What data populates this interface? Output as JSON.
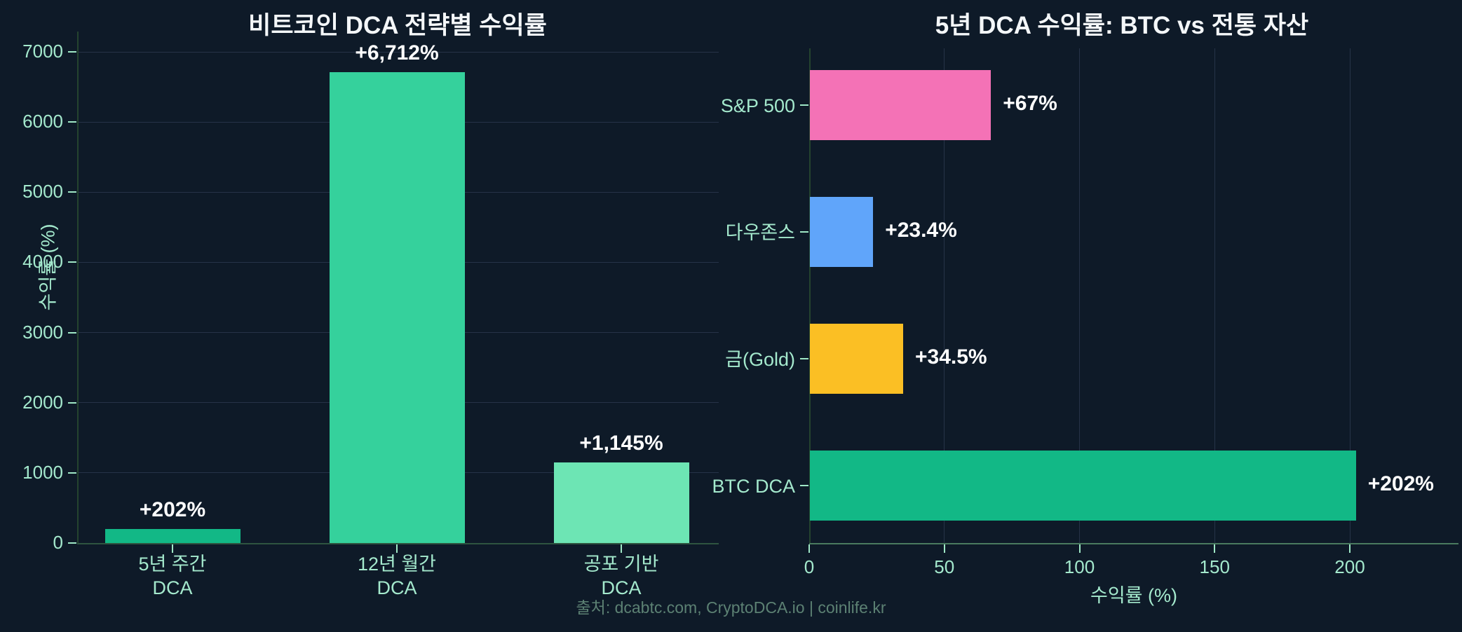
{
  "page": {
    "footer": "출처: dcabtc.com, CryptoDCA.io | coinlife.kr"
  },
  "colors": {
    "background": "#0e1a28",
    "grid": "#263348",
    "axis_spine": "#24432f",
    "baseline_left": "#2e5440",
    "baseline_right": "#4a7a5f",
    "tick_mark": "#9fe8c6",
    "tick_text": "#a4e9cd",
    "value_text": "#ffffff",
    "title_text": "#f4f7f9",
    "footer_text": "#5c8173"
  },
  "chart_data": [
    {
      "type": "bar",
      "orientation": "vertical",
      "title": "비트코인 DCA 전략별 수익률",
      "xlabel": "",
      "ylabel": "수익률 (%)",
      "ylim": [
        0,
        7000
      ],
      "yticks": [
        0,
        1000,
        2000,
        3000,
        4000,
        5000,
        6000,
        7000
      ],
      "grid": "horizontal",
      "legend": "none",
      "categories": [
        "5년 주간\nDCA",
        "12년 월간\nDCA",
        "공포 기반\nDCA"
      ],
      "values": [
        202,
        6712,
        1145
      ],
      "value_labels": [
        "+202%",
        "+6,712%",
        "+1,145%"
      ],
      "bar_colors": [
        "#12b886",
        "#35d19c",
        "#6de5b4"
      ]
    },
    {
      "type": "bar",
      "orientation": "horizontal",
      "title": "5년 DCA 수익률: BTC vs 전통 자산",
      "xlabel": "수익률 (%)",
      "ylabel": "",
      "xlim": [
        0,
        240
      ],
      "xticks": [
        0,
        50,
        100,
        150,
        200
      ],
      "grid": "vertical",
      "legend": "none",
      "categories": [
        "S&P 500",
        "다우존스",
        "금(Gold)",
        "BTC DCA"
      ],
      "values": [
        67,
        23.4,
        34.5,
        202
      ],
      "value_labels": [
        "+67%",
        "+23.4%",
        "+34.5%",
        "+202%"
      ],
      "bar_colors": [
        "#f472b6",
        "#60a5fa",
        "#fbbf24",
        "#12b886"
      ]
    }
  ]
}
